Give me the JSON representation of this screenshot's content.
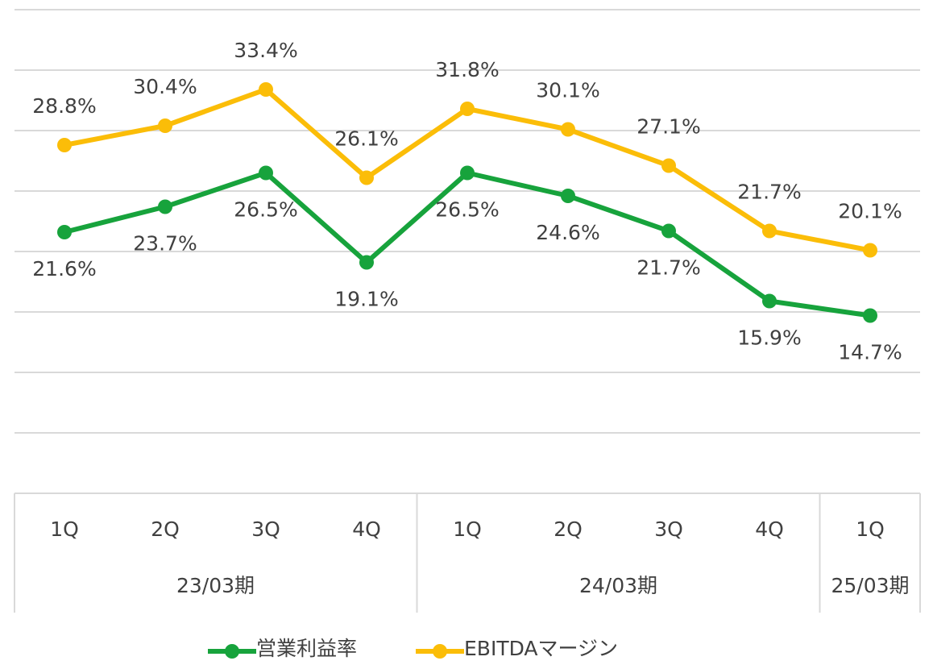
{
  "chart_data": {
    "type": "line",
    "categories": [
      "1Q",
      "2Q",
      "3Q",
      "4Q",
      "1Q",
      "2Q",
      "3Q",
      "4Q",
      "1Q"
    ],
    "groups": [
      {
        "label": "23/03期",
        "span": 4
      },
      {
        "label": "24/03期",
        "span": 4
      },
      {
        "label": "25/03期",
        "span": 1
      }
    ],
    "series": [
      {
        "name": "営業利益率",
        "color": "#17a33c",
        "values": [
          21.6,
          23.7,
          26.5,
          19.1,
          26.5,
          24.6,
          21.7,
          15.9,
          14.7
        ],
        "value_labels": [
          "21.6%",
          "23.7%",
          "26.5%",
          "19.1%",
          "26.5%",
          "24.6%",
          "21.7%",
          "15.9%",
          "14.7%"
        ]
      },
      {
        "name": "EBITDAマージン",
        "color": "#fbbd08",
        "values": [
          28.8,
          30.4,
          33.4,
          26.1,
          31.8,
          30.1,
          27.1,
          21.7,
          20.1
        ],
        "value_labels": [
          "28.8%",
          "30.4%",
          "33.4%",
          "26.1%",
          "31.8%",
          "30.1%",
          "27.1%",
          "21.7%",
          "20.1%"
        ]
      }
    ],
    "ylim": [
      0,
      40
    ],
    "yticks": [
      0,
      5,
      10,
      15,
      20,
      25,
      30,
      35,
      40
    ],
    "grid": true,
    "legend": "bottom"
  }
}
